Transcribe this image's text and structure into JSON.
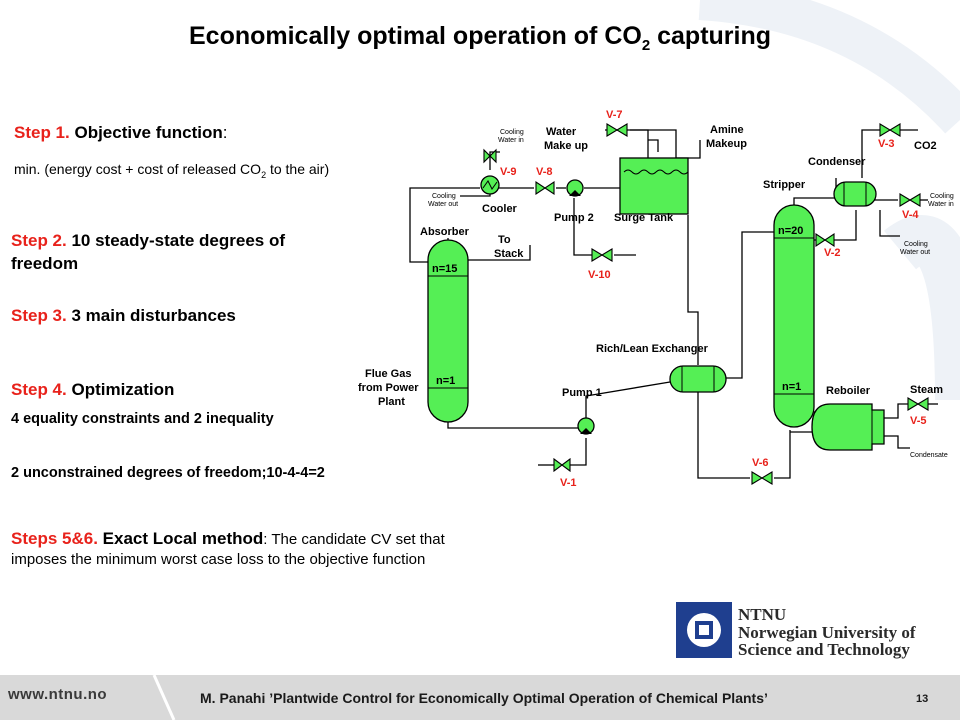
{
  "slide": {
    "title_main": "Economically optimal operation of CO",
    "title_sub": "2",
    "title_end": " capturing",
    "page_number": "13"
  },
  "steps": {
    "s1_label": "Step 1.",
    "s1_text": " Objective function",
    "s1_colon": ":",
    "s1_detail_a": "min. (energy cost + cost of released CO",
    "s1_detail_sub": "2",
    "s1_detail_b": " to the air)",
    "s2_label": "Step 2.",
    "s2_text": " 10 steady-state degrees of",
    "s2_text2": "freedom",
    "s3_label": "Step 3.",
    "s3_text": " 3 main disturbances",
    "s4_label": "Step 4.",
    "s4_text": " Optimization",
    "s4_detail": "4 equality constraints and 2 inequality",
    "s4_detail2": "2 unconstrained degrees of freedom;10-4-4=2",
    "s56_label": "Steps 5&6.",
    "s56_text": " Exact Local method",
    "s56_text2": ": The candidate CV set that",
    "s56_text3": "imposes the minimum worst case loss to the objective function"
  },
  "diagram": {
    "absorber": "Absorber",
    "absorber_top": "n=15",
    "absorber_bottom": "n=1",
    "stripper": "Stripper",
    "stripper_top": "n=20",
    "stripper_bottom": "n=1",
    "flue_gas_1": "Flue Gas",
    "flue_gas_2": "from Power",
    "flue_gas_3": "Plant",
    "to_stack_1": "To",
    "to_stack_2": "Stack",
    "cooler": "Cooler",
    "cooling_in_1a": "Cooling",
    "cooling_in_1b": "Water in",
    "cooling_out_1a": "Cooling",
    "cooling_out_1b": "Water out",
    "water_makeup_1": "Water",
    "water_makeup_2": "Make up",
    "amine_makeup_1": "Amine",
    "amine_makeup_2": "Makeup",
    "surge_tank": "Surge Tank",
    "pump2": "Pump 2",
    "pump1": "Pump 1",
    "exchanger": "Rich/Lean Exchanger",
    "condenser": "Condenser",
    "reboiler": "Reboiler",
    "steam": "Steam",
    "condensate": "Condensate",
    "co2": "CO2",
    "cooling_in_2a": "Cooling",
    "cooling_in_2b": "Water in",
    "cooling_out_2a": "Cooling",
    "cooling_out_2b": "Water out",
    "v1": "V-1",
    "v2": "V-2",
    "v3": "V-3",
    "v4": "V-4",
    "v5": "V-5",
    "v6": "V-6",
    "v7": "V-7",
    "v8": "V-8",
    "v9": "V-9",
    "v10": "V-10",
    "equipment_color": "#55ef55",
    "valve_label_color": "#e8221b"
  },
  "logo": {
    "line1": "NTNU",
    "line2": "Norwegian University of",
    "line3": "Science and Technology",
    "primary_color": "#1f3f8f"
  },
  "footer": {
    "url": "www.ntnu.no",
    "citation": "M. Panahi ’Plantwide Control for Economically Optimal Operation of Chemical Plants’"
  }
}
